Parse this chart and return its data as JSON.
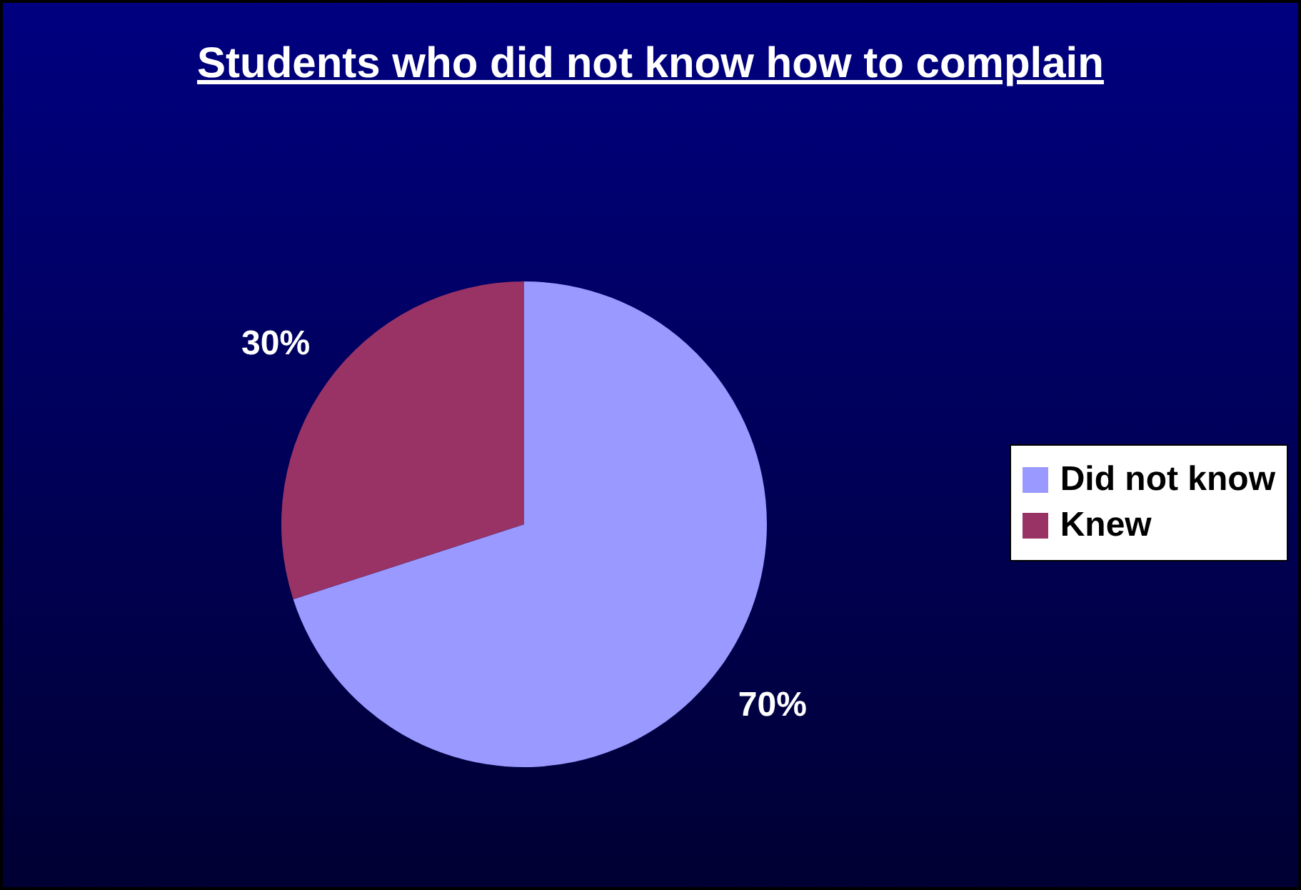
{
  "chart_data": {
    "type": "pie",
    "title": "Students who did not know how to complain",
    "categories": [
      "Did not know",
      "Knew"
    ],
    "values": [
      70,
      30
    ],
    "value_labels": [
      "70%",
      "30%"
    ],
    "colors": [
      "#9999ff",
      "#993366"
    ],
    "legend": "right"
  }
}
